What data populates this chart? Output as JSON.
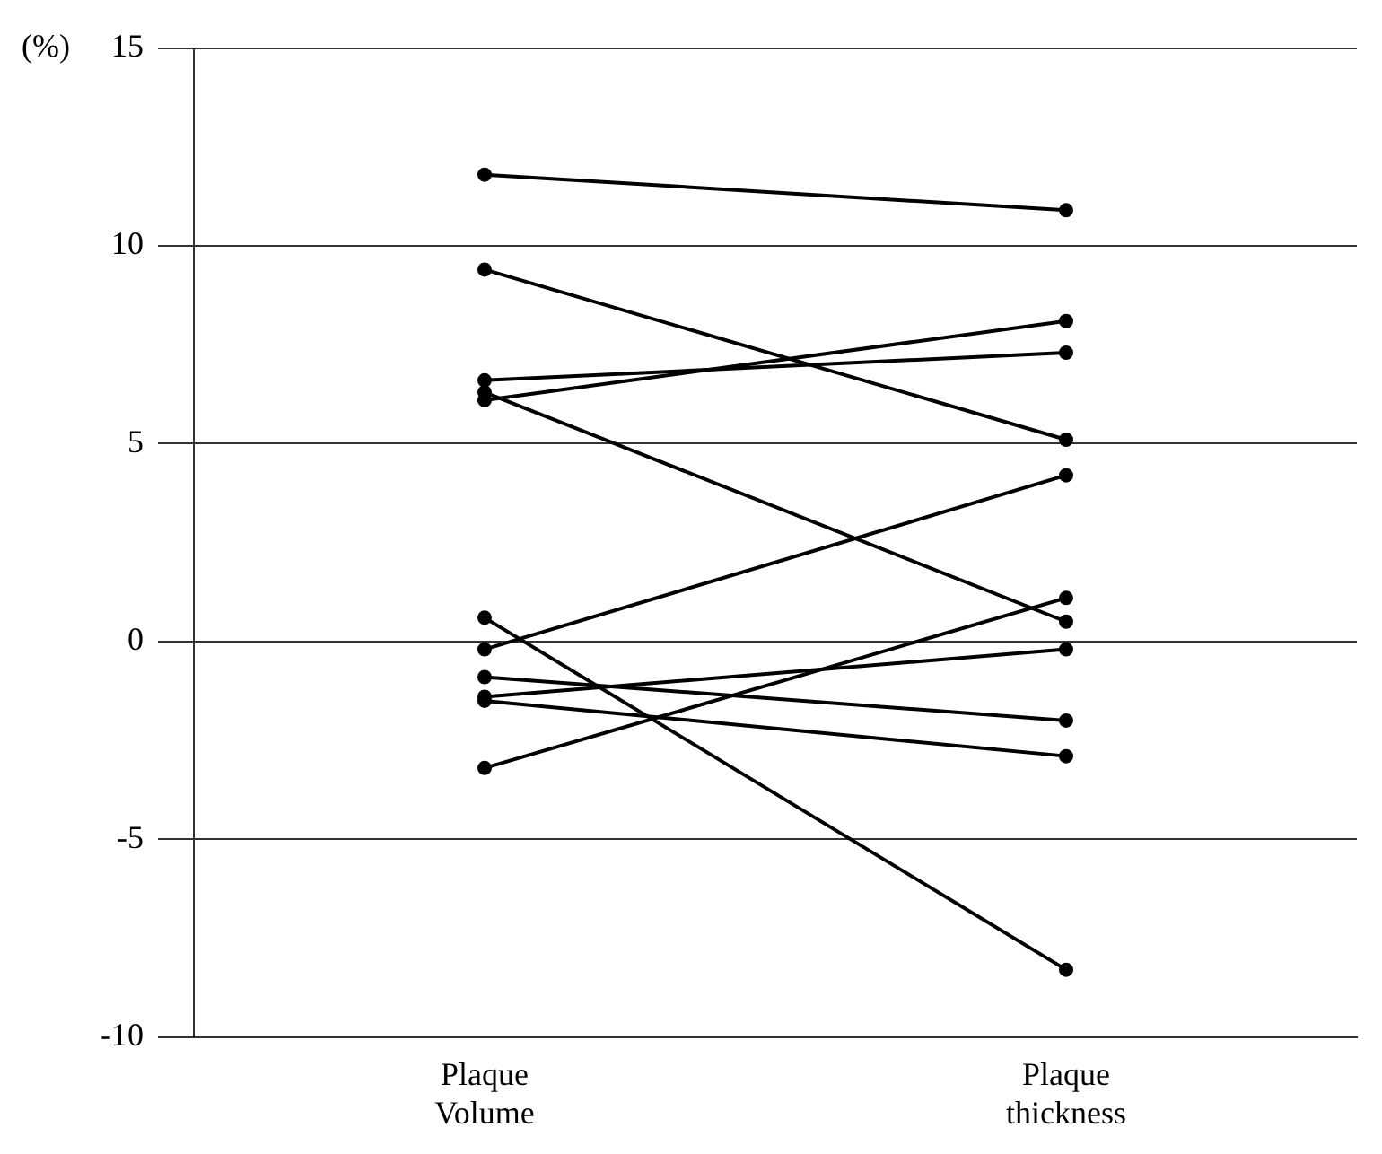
{
  "chart_data": {
    "type": "line",
    "ylabel": "(%)",
    "categories": [
      "Plaque Volume",
      "Plaque thickness"
    ],
    "series": [
      {
        "color": "#000000",
        "values": [
          11.8,
          10.9
        ]
      },
      {
        "color": "#000000",
        "values": [
          9.4,
          5.1
        ]
      },
      {
        "color": "#000000",
        "values": [
          6.6,
          7.3
        ]
      },
      {
        "color": "#000000",
        "values": [
          6.1,
          8.1
        ]
      },
      {
        "color": "#000000",
        "values": [
          6.3,
          0.5
        ]
      },
      {
        "color": "#000000",
        "values": [
          0.6,
          -8.3
        ]
      },
      {
        "color": "#000000",
        "values": [
          -0.2,
          4.2
        ]
      },
      {
        "color": "#000000",
        "values": [
          -0.9,
          -2.0
        ]
      },
      {
        "color": "#000000",
        "values": [
          -1.4,
          -0.2
        ]
      },
      {
        "color": "#000000",
        "values": [
          -1.5,
          -2.9
        ]
      },
      {
        "color": "#000000",
        "values": [
          -3.2,
          1.1
        ]
      }
    ],
    "ylim": [
      -10,
      15
    ],
    "yticks": [
      -10,
      -5,
      0,
      5,
      10,
      15
    ],
    "grid": "y",
    "legend": false,
    "marker": "circle",
    "line_style": "solid"
  }
}
